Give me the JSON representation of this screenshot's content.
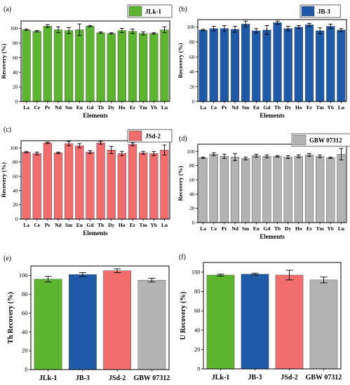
{
  "figure": {
    "panels": [
      {
        "label": "(a)",
        "legend": "JLk-1",
        "xlabel": "Elements",
        "ylabel": "Recovery (%)"
      },
      {
        "label": "(b)",
        "legend": "JB-3",
        "xlabel": "Elements",
        "ylabel": "Recovery (%)"
      },
      {
        "label": "(c)",
        "legend": "JSd-2",
        "xlabel": "Elements",
        "ylabel": "Recovery (%)"
      },
      {
        "label": "(d)",
        "legend": "GBW 07312",
        "xlabel": "Elements",
        "ylabel": "Recovery (%)"
      },
      {
        "label": "(e)",
        "legend": "",
        "xlabel": "",
        "ylabel": "Th Recovery (%)"
      },
      {
        "label": "(f)",
        "legend": "",
        "xlabel": "",
        "ylabel": "U Recovery (%)"
      }
    ]
  },
  "colors": {
    "JLk-1": "#5db52f",
    "JB-3": "#1f5aa8",
    "JSd-2": "#f26d6d",
    "GBW 07312": "#b3b3b3"
  },
  "chart_data": [
    {
      "type": "bar",
      "panel": "(a)",
      "legend": "JLk-1",
      "color": "#5db52f",
      "categories": [
        "La",
        "Ce",
        "Pr",
        "Nd",
        "Sm",
        "Eu",
        "Gd",
        "Tb",
        "Dy",
        "Ho",
        "Er",
        "Tm",
        "Yb",
        "Lu"
      ],
      "values": [
        98,
        96,
        103,
        98,
        97,
        98,
        103,
        94,
        93,
        97,
        96,
        93,
        93,
        98
      ],
      "errors": [
        1,
        1,
        2,
        4,
        4,
        8,
        1,
        1,
        1,
        3,
        3,
        2,
        1,
        4
      ],
      "xlabel": "Elements",
      "ylabel": "Recovery (%)",
      "ylim": [
        0,
        110
      ],
      "yticks": [
        0,
        20,
        40,
        60,
        80,
        100
      ]
    },
    {
      "type": "bar",
      "panel": "(b)",
      "legend": "JB-3",
      "color": "#1f5aa8",
      "categories": [
        "La",
        "Ce",
        "Pr",
        "Nd",
        "Sm",
        "Eu",
        "Gd",
        "Tb",
        "Dy",
        "Ho",
        "Er",
        "Tm",
        "Yb",
        "Lu"
      ],
      "values": [
        96,
        98,
        98,
        97,
        104,
        95,
        96,
        106,
        98,
        100,
        103,
        95,
        101,
        96
      ],
      "errors": [
        1,
        3,
        4,
        4,
        4,
        3,
        6,
        2,
        3,
        2,
        2,
        4,
        3,
        2
      ],
      "xlabel": "Elements",
      "ylabel": "Recovery (%)",
      "ylim": [
        0,
        110
      ],
      "yticks": [
        0,
        20,
        40,
        60,
        80,
        100
      ]
    },
    {
      "type": "bar",
      "panel": "(c)",
      "legend": "JSd-2",
      "color": "#f26d6d",
      "categories": [
        "La",
        "Ce",
        "Pr",
        "Nd",
        "Sm",
        "Eu",
        "Gd",
        "Tb",
        "Dy",
        "Ho",
        "Er",
        "Tm",
        "Yb",
        "Lu"
      ],
      "values": [
        94,
        92,
        107,
        93,
        106,
        103,
        94,
        107,
        97,
        92,
        105,
        93,
        92,
        97
      ],
      "errors": [
        1,
        2,
        1,
        1,
        3,
        3,
        2,
        2,
        5,
        3,
        2,
        2,
        3,
        7
      ],
      "xlabel": "Elements",
      "ylabel": "Recovery (%)",
      "ylim": [
        0,
        110
      ],
      "yticks": [
        0,
        20,
        40,
        60,
        80,
        100
      ]
    },
    {
      "type": "bar",
      "panel": "(d)",
      "legend": "GBW 07312",
      "color": "#b3b3b3",
      "categories": [
        "La",
        "Ce",
        "Pr",
        "Nd",
        "Sm",
        "Eu",
        "Gd",
        "Tb",
        "Dy",
        "Ho",
        "Er",
        "Tm",
        "Yb",
        "Lu"
      ],
      "values": [
        91,
        96,
        93,
        92,
        90,
        94,
        93,
        93,
        92,
        93,
        95,
        93,
        91,
        96
      ],
      "errors": [
        1,
        2,
        3,
        5,
        2,
        2,
        2,
        1,
        2,
        2,
        2,
        2,
        1,
        8
      ],
      "xlabel": "Elements",
      "ylabel": "Recovery (%)",
      "ylim": [
        0,
        110
      ],
      "yticks": [
        0,
        20,
        40,
        60,
        80,
        100
      ]
    },
    {
      "type": "bar",
      "panel": "(e)",
      "categories": [
        "JLk-1",
        "JB-3",
        "JSd-2",
        "GBW 07312"
      ],
      "colors": [
        "#5db52f",
        "#1f5aa8",
        "#f26d6d",
        "#b3b3b3"
      ],
      "values": [
        96,
        101,
        105,
        95
      ],
      "errors": [
        3,
        2,
        2,
        2
      ],
      "xlabel": "",
      "ylabel": "Th Recovery (%)",
      "ylim": [
        0,
        110
      ],
      "yticks": [
        0,
        20,
        40,
        60,
        80,
        100
      ]
    },
    {
      "type": "bar",
      "panel": "(f)",
      "categories": [
        "JLk-1",
        "JB-3",
        "JSd-2",
        "GBW 07312"
      ],
      "colors": [
        "#5db52f",
        "#1f5aa8",
        "#f26d6d",
        "#b3b3b3"
      ],
      "values": [
        97,
        98,
        97,
        92
      ],
      "errors": [
        1,
        1,
        5,
        3
      ],
      "xlabel": "",
      "ylabel": "U Recovery (%)",
      "ylim": [
        0,
        110
      ],
      "yticks": [
        0,
        20,
        40,
        60,
        80,
        100
      ]
    }
  ]
}
